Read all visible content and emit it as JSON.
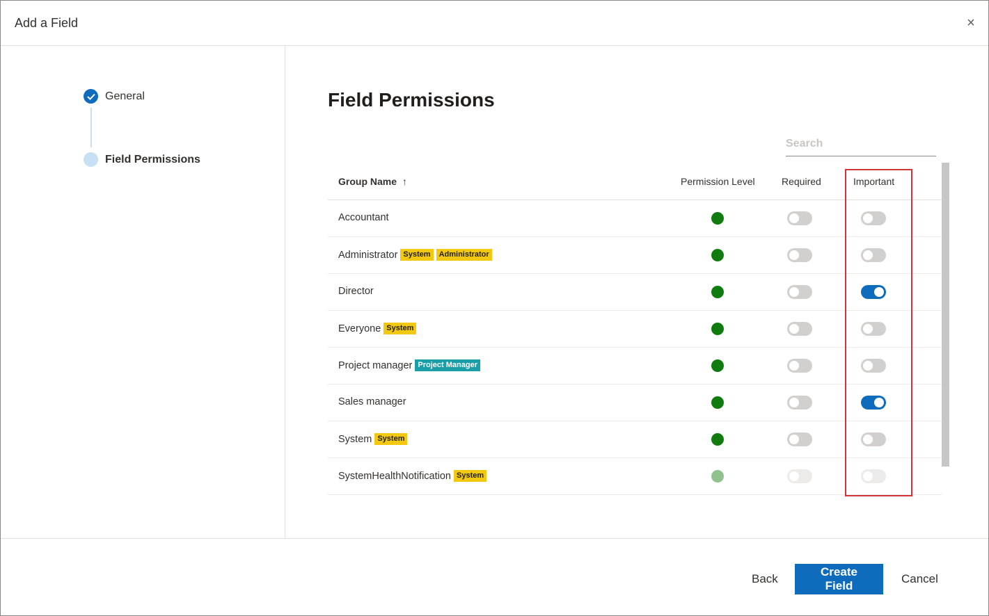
{
  "dialog": {
    "title": "Add a Field",
    "close_glyph": "×"
  },
  "steps": [
    {
      "label": "General",
      "state": "completed"
    },
    {
      "label": "Field Permissions",
      "state": "current"
    }
  ],
  "main": {
    "title": "Field Permissions",
    "search_placeholder": "Search"
  },
  "table": {
    "headers": {
      "group_name": "Group Name",
      "sort_glyph": "↑",
      "permission_level": "Permission Level",
      "required": "Required",
      "important": "Important"
    },
    "rows": [
      {
        "name": "Accountant",
        "badges": [],
        "permission": "full",
        "required": false,
        "important": false,
        "disabled": false
      },
      {
        "name": "Administrator",
        "badges": [
          "System",
          "Administrator"
        ],
        "permission": "full",
        "required": false,
        "important": false,
        "disabled": false
      },
      {
        "name": "Director",
        "badges": [],
        "permission": "full",
        "required": false,
        "important": true,
        "disabled": false
      },
      {
        "name": "Everyone",
        "badges": [
          "System"
        ],
        "permission": "full",
        "required": false,
        "important": false,
        "disabled": false
      },
      {
        "name": "Project manager",
        "badges": [
          "Project Manager"
        ],
        "permission": "full",
        "required": false,
        "important": false,
        "disabled": false
      },
      {
        "name": "Sales manager",
        "badges": [],
        "permission": "full",
        "required": false,
        "important": true,
        "disabled": false
      },
      {
        "name": "System",
        "badges": [
          "System"
        ],
        "permission": "full",
        "required": false,
        "important": false,
        "disabled": false
      },
      {
        "name": "SystemHealthNotification",
        "badges": [
          "System"
        ],
        "permission": "full",
        "required": false,
        "important": false,
        "disabled": true
      }
    ]
  },
  "footer": {
    "back_label": "Back",
    "create_label": "Create Field",
    "cancel_label": "Cancel"
  },
  "colors": {
    "accent": "#0f6cbd",
    "permission_green": "#107c10",
    "badge_yellow": "#f2c811",
    "badge_teal": "#1a9ea8",
    "highlight_red": "#d13438"
  }
}
